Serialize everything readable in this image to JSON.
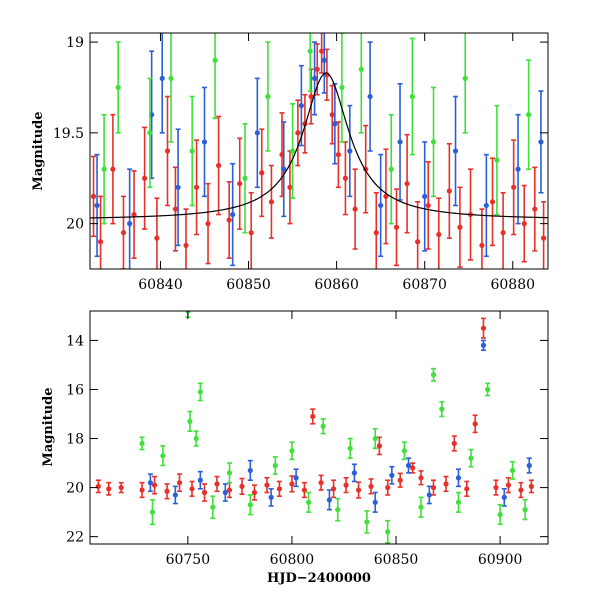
{
  "chart_data": [
    {
      "type": "scatter",
      "panel": "top",
      "xlabel": "",
      "ylabel": "Magnitude",
      "xlim": [
        60832,
        60884
      ],
      "ylim": [
        20.25,
        18.95
      ],
      "y_inverted": true,
      "xticks": [
        60840,
        60850,
        60860,
        60870,
        60880
      ],
      "xtick_labels": [
        "60840",
        "60850",
        "60860",
        "60870",
        "60880"
      ],
      "yticks": [
        19,
        19.5,
        20
      ],
      "ytick_labels": [
        "19",
        "19.5",
        "20"
      ],
      "series": [
        {
          "color": "#e8302a",
          "points": [
            [
              60832.4,
              19.85,
              0.22
            ],
            [
              60833.2,
              20.1,
              0.25
            ],
            [
              60834.6,
              19.7,
              0.3
            ],
            [
              60835.8,
              20.05,
              0.2
            ],
            [
              60837.0,
              19.95,
              0.24
            ],
            [
              60838.2,
              19.75,
              0.28
            ],
            [
              60839.6,
              20.08,
              0.22
            ],
            [
              60840.8,
              19.6,
              0.3
            ],
            [
              60841.7,
              19.92,
              0.23
            ],
            [
              60842.9,
              20.12,
              0.2
            ],
            [
              60844.1,
              19.8,
              0.26
            ],
            [
              60845.4,
              20.0,
              0.22
            ],
            [
              60846.6,
              19.68,
              0.27
            ],
            [
              60847.8,
              19.98,
              0.21
            ],
            [
              60849.0,
              19.78,
              0.25
            ],
            [
              60850.3,
              20.05,
              0.22
            ],
            [
              60851.5,
              19.72,
              0.24
            ],
            [
              60852.6,
              19.88,
              0.2
            ],
            [
              60853.8,
              19.62,
              0.23
            ],
            [
              60854.7,
              19.8,
              0.2
            ],
            [
              60855.6,
              19.5,
              0.18
            ],
            [
              60856.4,
              19.45,
              0.16
            ],
            [
              60857.1,
              19.3,
              0.15
            ],
            [
              60857.8,
              19.15,
              0.14
            ],
            [
              60858.3,
              19.05,
              0.12
            ],
            [
              60858.9,
              19.18,
              0.14
            ],
            [
              60859.5,
              19.4,
              0.16
            ],
            [
              60860.2,
              19.62,
              0.18
            ],
            [
              60861.0,
              19.75,
              0.2
            ],
            [
              60862.1,
              19.92,
              0.22
            ],
            [
              60863.3,
              19.7,
              0.24
            ],
            [
              60864.5,
              20.05,
              0.22
            ],
            [
              60865.6,
              19.85,
              0.26
            ],
            [
              60866.8,
              20.02,
              0.21
            ],
            [
              60868.0,
              19.78,
              0.27
            ],
            [
              60869.2,
              20.1,
              0.22
            ],
            [
              60870.4,
              19.9,
              0.24
            ],
            [
              60871.6,
              20.06,
              0.2
            ],
            [
              60872.8,
              19.82,
              0.26
            ],
            [
              60874.0,
              20.02,
              0.22
            ],
            [
              60875.2,
              19.95,
              0.25
            ],
            [
              60876.5,
              20.12,
              0.2
            ],
            [
              60877.7,
              19.88,
              0.24
            ],
            [
              60878.9,
              20.05,
              0.22
            ],
            [
              60880.1,
              19.8,
              0.26
            ],
            [
              60881.3,
              20.0,
              0.21
            ],
            [
              60882.5,
              19.92,
              0.23
            ],
            [
              60883.5,
              20.08,
              0.2
            ]
          ]
        },
        {
          "color": "#2a5fd8",
          "points": [
            [
              60832.8,
              19.9,
              0.28
            ],
            [
              60836.5,
              20.0,
              0.3
            ],
            [
              60839.0,
              19.4,
              0.35
            ],
            [
              60840.2,
              19.2,
              0.3
            ],
            [
              60842.0,
              19.8,
              0.32
            ],
            [
              60845.0,
              19.55,
              0.3
            ],
            [
              60848.2,
              19.95,
              0.28
            ],
            [
              60851.0,
              19.5,
              0.3
            ],
            [
              60854.0,
              19.7,
              0.26
            ],
            [
              60856.0,
              19.35,
              0.22
            ],
            [
              60857.5,
              19.2,
              0.2
            ],
            [
              60858.6,
              19.1,
              0.18
            ],
            [
              60859.8,
              19.45,
              0.22
            ],
            [
              60861.5,
              19.6,
              0.25
            ],
            [
              60863.8,
              19.3,
              0.3
            ],
            [
              60865.0,
              19.9,
              0.28
            ],
            [
              60867.2,
              19.55,
              0.32
            ],
            [
              60870.0,
              19.85,
              0.3
            ],
            [
              60873.5,
              19.6,
              0.3
            ],
            [
              60877.0,
              19.9,
              0.28
            ],
            [
              60880.6,
              19.7,
              0.3
            ],
            [
              60883.2,
              19.55,
              0.28
            ]
          ]
        },
        {
          "color": "#3ee03a",
          "points": [
            [
              60833.6,
              19.7,
              0.3
            ],
            [
              60835.2,
              19.25,
              0.25
            ],
            [
              60838.8,
              19.5,
              0.3
            ],
            [
              60841.2,
              19.2,
              0.35
            ],
            [
              60843.6,
              19.6,
              0.3
            ],
            [
              60846.2,
              19.1,
              0.32
            ],
            [
              60849.6,
              19.75,
              0.3
            ],
            [
              60852.2,
              19.3,
              0.3
            ],
            [
              60855.0,
              19.6,
              0.26
            ],
            [
              60857.0,
              19.05,
              0.22
            ],
            [
              60860.6,
              19.25,
              0.3
            ],
            [
              60862.8,
              19.15,
              0.35
            ],
            [
              60866.2,
              19.7,
              0.3
            ],
            [
              60868.6,
              19.3,
              0.32
            ],
            [
              60871.0,
              19.55,
              0.3
            ],
            [
              60874.6,
              19.2,
              0.3
            ],
            [
              60878.2,
              19.65,
              0.3
            ],
            [
              60881.8,
              19.4,
              0.3
            ]
          ]
        }
      ],
      "model_curve": {
        "color": "#000000",
        "baseline": 19.98,
        "peak_mag": 19.17,
        "t0": 60858.8,
        "tE": 3.2
      }
    },
    {
      "type": "scatter",
      "panel": "bottom",
      "xlabel": "HJD−2400000",
      "ylabel": "Magnitude",
      "xlim": [
        60703,
        60923
      ],
      "ylim": [
        22.3,
        12.8
      ],
      "y_inverted": true,
      "xticks": [
        60750,
        60800,
        60850,
        60900
      ],
      "xtick_labels": [
        "60750",
        "60800",
        "60850",
        "60900"
      ],
      "yticks": [
        14,
        16,
        18,
        20,
        22
      ],
      "ytick_labels": [
        "14",
        "16",
        "18",
        "20",
        "22"
      ],
      "series": [
        {
          "color": "#e8302a",
          "points": [
            [
              60707,
              19.95,
              0.25
            ],
            [
              60712,
              20.05,
              0.25
            ],
            [
              60718,
              20.0,
              0.2
            ],
            [
              60728,
              20.1,
              0.3
            ],
            [
              60734,
              19.9,
              0.35
            ],
            [
              60740,
              20.15,
              0.3
            ],
            [
              60746,
              19.8,
              0.35
            ],
            [
              60752,
              20.05,
              0.3
            ],
            [
              60758,
              20.2,
              0.35
            ],
            [
              60764,
              19.85,
              0.3
            ],
            [
              60770,
              20.1,
              0.3
            ],
            [
              60776,
              19.95,
              0.32
            ],
            [
              60782,
              20.2,
              0.3
            ],
            [
              60788,
              19.9,
              0.3
            ],
            [
              60794,
              20.05,
              0.3
            ],
            [
              60800,
              19.85,
              0.32
            ],
            [
              60806,
              20.1,
              0.3
            ],
            [
              60810,
              17.1,
              0.3
            ],
            [
              60814,
              19.8,
              0.3
            ],
            [
              60820,
              20.05,
              0.35
            ],
            [
              60826,
              19.9,
              0.3
            ],
            [
              60832,
              20.1,
              0.32
            ],
            [
              60838,
              19.95,
              0.3
            ],
            [
              60842,
              18.3,
              0.35
            ],
            [
              60846,
              20.0,
              0.3
            ],
            [
              60852,
              19.7,
              0.28
            ],
            [
              60858,
              19.2,
              0.2
            ],
            [
              60862,
              19.6,
              0.28
            ],
            [
              60868,
              20.0,
              0.3
            ],
            [
              60874,
              19.85,
              0.3
            ],
            [
              60878,
              18.2,
              0.3
            ],
            [
              60884,
              20.05,
              0.3
            ],
            [
              60888,
              17.4,
              0.35
            ],
            [
              60892,
              13.5,
              0.4
            ],
            [
              60898,
              20.0,
              0.3
            ],
            [
              60904,
              19.9,
              0.3
            ],
            [
              60910,
              20.1,
              0.3
            ],
            [
              60915,
              19.95,
              0.25
            ]
          ]
        },
        {
          "color": "#2a5fd8",
          "points": [
            [
              60732,
              19.8,
              0.35
            ],
            [
              60744,
              20.3,
              0.35
            ],
            [
              60756,
              19.7,
              0.35
            ],
            [
              60768,
              20.2,
              0.35
            ],
            [
              60780,
              19.3,
              0.4
            ],
            [
              60790,
              20.4,
              0.35
            ],
            [
              60802,
              19.6,
              0.35
            ],
            [
              60818,
              20.5,
              0.4
            ],
            [
              60830,
              19.4,
              0.35
            ],
            [
              60840,
              20.6,
              0.4
            ],
            [
              60848,
              19.5,
              0.35
            ],
            [
              60856,
              19.1,
              0.3
            ],
            [
              60866,
              20.3,
              0.35
            ],
            [
              60880,
              19.6,
              0.35
            ],
            [
              60892,
              14.2,
              0.2
            ],
            [
              60902,
              20.4,
              0.35
            ],
            [
              60914,
              19.1,
              0.3
            ]
          ]
        },
        {
          "color": "#3ee03a",
          "points": [
            [
              60728,
              18.2,
              0.25
            ],
            [
              60733,
              21.0,
              0.5
            ],
            [
              60738,
              18.7,
              0.4
            ],
            [
              60750,
              12.8,
              0.25
            ],
            [
              60751,
              17.3,
              0.4
            ],
            [
              60754,
              18.0,
              0.3
            ],
            [
              60756,
              16.1,
              0.35
            ],
            [
              60762,
              20.8,
              0.45
            ],
            [
              60770,
              19.4,
              0.4
            ],
            [
              60780,
              20.7,
              0.4
            ],
            [
              60792,
              19.1,
              0.35
            ],
            [
              60800,
              18.5,
              0.35
            ],
            [
              60808,
              20.6,
              0.4
            ],
            [
              60815,
              17.5,
              0.3
            ],
            [
              60822,
              20.9,
              0.45
            ],
            [
              60828,
              18.4,
              0.4
            ],
            [
              60836,
              21.4,
              0.45
            ],
            [
              60840,
              18.0,
              0.4
            ],
            [
              60846,
              21.8,
              0.45
            ],
            [
              60854,
              18.5,
              0.35
            ],
            [
              60862,
              20.8,
              0.4
            ],
            [
              60868,
              15.4,
              0.25
            ],
            [
              60872,
              16.8,
              0.3
            ],
            [
              60880,
              20.6,
              0.4
            ],
            [
              60886,
              18.8,
              0.35
            ],
            [
              60894,
              16.0,
              0.25
            ],
            [
              60900,
              21.1,
              0.4
            ],
            [
              60906,
              19.3,
              0.35
            ],
            [
              60912,
              20.9,
              0.4
            ]
          ]
        }
      ]
    }
  ]
}
